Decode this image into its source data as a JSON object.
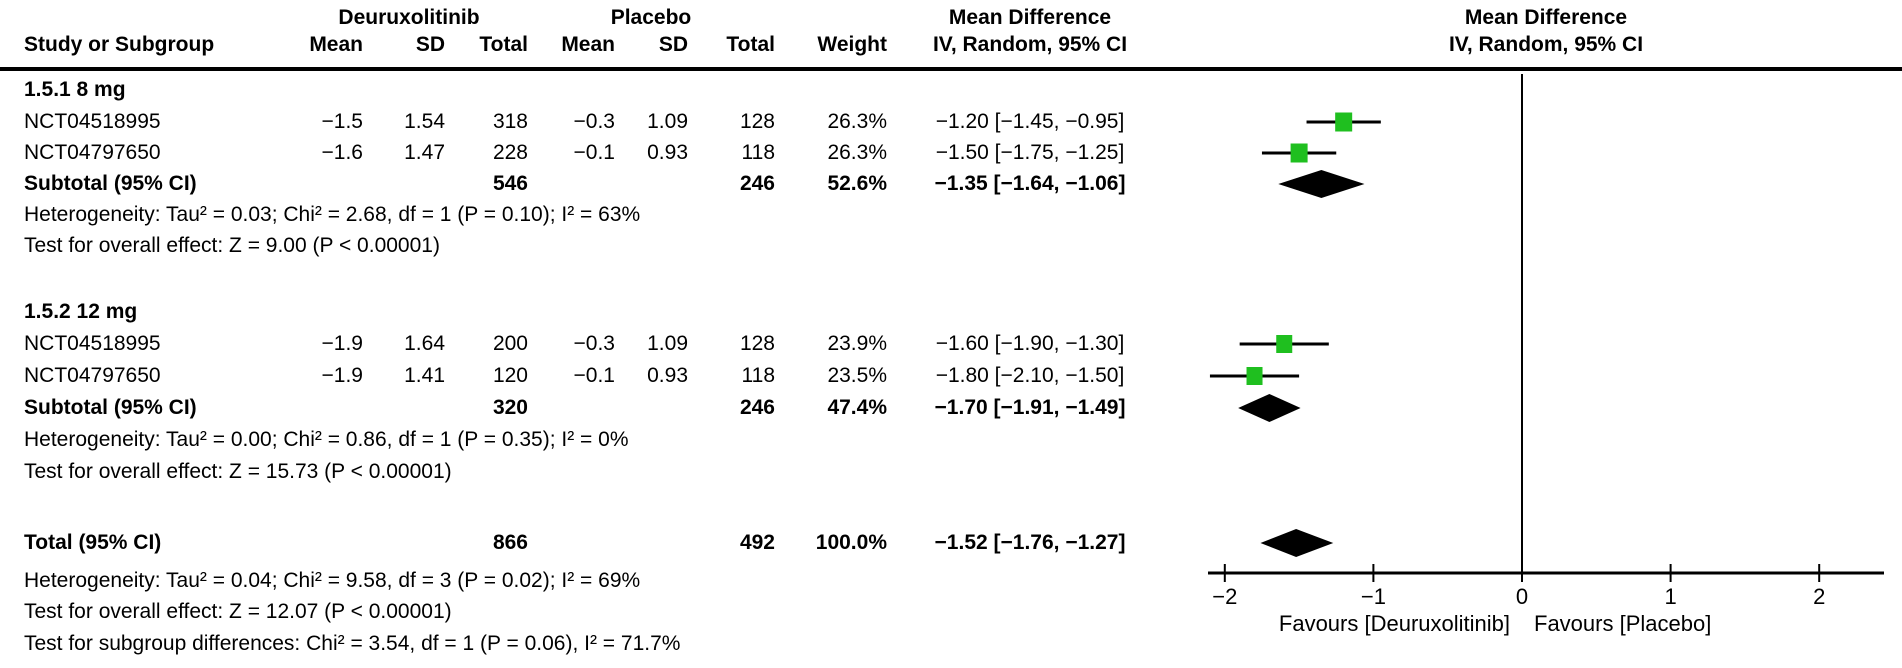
{
  "header": {
    "group1": "Deuruxolitinib",
    "group2": "Placebo",
    "md_title": "Mean Difference",
    "md_sub": "IV, Random, 95% CI",
    "col_study": "Study or Subgroup",
    "col_mean": "Mean",
    "col_sd": "SD",
    "col_total": "Total",
    "col_weight": "Weight"
  },
  "sections": [
    {
      "title": "1.5.1 8 mg",
      "studies": [
        {
          "name": "NCT04518995",
          "mean1": "−1.5",
          "sd1": "1.54",
          "total1": "318",
          "mean2": "−0.3",
          "sd2": "1.09",
          "total2": "128",
          "weight": "26.3%",
          "ci": "−1.20 [−1.45, −0.95]"
        },
        {
          "name": "NCT04797650",
          "mean1": "−1.6",
          "sd1": "1.47",
          "total1": "228",
          "mean2": "−0.1",
          "sd2": "0.93",
          "total2": "118",
          "weight": "26.3%",
          "ci": "−1.50 [−1.75, −1.25]"
        }
      ],
      "subtotal": {
        "label": "Subtotal (95% CI)",
        "total1": "546",
        "total2": "246",
        "weight": "52.6%",
        "ci": "−1.35 [−1.64, −1.06]"
      },
      "heterogeneity": "Heterogeneity: Tau² = 0.03; Chi² = 2.68, df = 1 (P = 0.10); I² = 63%",
      "overall_test": "Test for overall effect: Z = 9.00 (P < 0.00001)"
    },
    {
      "title": "1.5.2 12 mg",
      "studies": [
        {
          "name": "NCT04518995",
          "mean1": "−1.9",
          "sd1": "1.64",
          "total1": "200",
          "mean2": "−0.3",
          "sd2": "1.09",
          "total2": "128",
          "weight": "23.9%",
          "ci": "−1.60 [−1.90, −1.30]"
        },
        {
          "name": "NCT04797650",
          "mean1": "−1.9",
          "sd1": "1.41",
          "total1": "120",
          "mean2": "−0.1",
          "sd2": "0.93",
          "total2": "118",
          "weight": "23.5%",
          "ci": "−1.80 [−2.10, −1.50]"
        }
      ],
      "subtotal": {
        "label": "Subtotal (95% CI)",
        "total1": "320",
        "total2": "246",
        "weight": "47.4%",
        "ci": "−1.70 [−1.91, −1.49]"
      },
      "heterogeneity": "Heterogeneity: Tau² = 0.00; Chi² = 0.86, df = 1 (P = 0.35); I² = 0%",
      "overall_test": "Test for overall effect: Z = 15.73 (P < 0.00001)"
    }
  ],
  "total": {
    "label": "Total (95% CI)",
    "total1": "866",
    "total2": "492",
    "weight": "100.0%",
    "ci": "−1.52 [−1.76, −1.27]"
  },
  "footer_lines": [
    "Heterogeneity: Tau² = 0.04; Chi² = 9.58, df = 3 (P = 0.02); I² = 69%",
    "Test for overall effect: Z = 12.07 (P < 0.00001)",
    "Test for subgroup differences: Chi² = 3.54, df = 1 (P = 0.06), I² = 71.7%"
  ],
  "axis": {
    "tick_labels": [
      "−2",
      "−1",
      "0",
      "1",
      "2"
    ],
    "tick_values": [
      -2,
      -1,
      0,
      1,
      2
    ],
    "favours_left": "Favours [Deuruxolitinib]",
    "favours_right": "Favours [Placebo]"
  },
  "colors": {
    "square": "#1FBF1F",
    "diamond": "#000000",
    "line": "#000000"
  },
  "chart_data": {
    "type": "scatter",
    "subtype": "forest_plot",
    "title": "Mean Difference",
    "effect_measure": "IV, Random, 95% CI",
    "x_axis": {
      "range": [
        -2.35,
        2.45
      ],
      "ticks": [
        -2,
        -1,
        0,
        1,
        2
      ],
      "label_left": "Favours [Deuruxolitinib]",
      "label_right": "Favours [Placebo]"
    },
    "groups": [
      {
        "name": "1.5.1 8 mg",
        "studies": [
          {
            "study": "NCT04518995",
            "estimate": -1.2,
            "ci_low": -1.45,
            "ci_high": -0.95,
            "weight_pct": 26.3
          },
          {
            "study": "NCT04797650",
            "estimate": -1.5,
            "ci_low": -1.75,
            "ci_high": -1.25,
            "weight_pct": 26.3
          }
        ],
        "subtotal": {
          "estimate": -1.35,
          "ci_low": -1.64,
          "ci_high": -1.06,
          "weight_pct": 52.6
        }
      },
      {
        "name": "1.5.2 12 mg",
        "studies": [
          {
            "study": "NCT04518995",
            "estimate": -1.6,
            "ci_low": -1.9,
            "ci_high": -1.3,
            "weight_pct": 23.9
          },
          {
            "study": "NCT04797650",
            "estimate": -1.8,
            "ci_low": -2.1,
            "ci_high": -1.5,
            "weight_pct": 23.5
          }
        ],
        "subtotal": {
          "estimate": -1.7,
          "ci_low": -1.91,
          "ci_high": -1.49,
          "weight_pct": 47.4
        }
      }
    ],
    "total": {
      "estimate": -1.52,
      "ci_low": -1.76,
      "ci_high": -1.27,
      "weight_pct": 100.0
    }
  }
}
